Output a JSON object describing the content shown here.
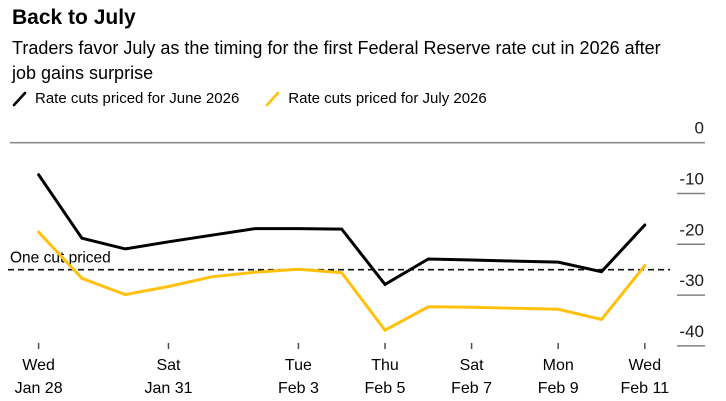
{
  "header": {
    "title": "Back to July",
    "subtitle": "Traders favor July as the timing for the first Federal Reserve rate cut in 2026 after job gains surprise"
  },
  "legend": {
    "items": [
      {
        "label": "Rate cuts priced for June 2026",
        "color": "#000000"
      },
      {
        "label": "Rate cuts priced for July 2026",
        "color": "#ffc10e"
      }
    ]
  },
  "colors": {
    "june_line": "#000000",
    "july_line": "#ffc10e",
    "zero_axis": "#8c8c8c",
    "tick_line": "#808080",
    "x_tick_line": "#4d4d4d",
    "label_text": "#1a1a1a",
    "dashed_line": "#111111"
  },
  "chart_data": {
    "type": "line",
    "title": "Back to July",
    "subtitle": "Traders favor July as the timing for the first Federal Reserve rate cut in 2026 after job gains surprise",
    "xlabel": "",
    "ylabel": "",
    "grid": false,
    "legend_position": "top",
    "ylim": [
      -42,
      0
    ],
    "yticks": [
      0,
      -10,
      -20,
      -30,
      -40
    ],
    "ytick_labels": [
      "0",
      "-10",
      "-20",
      "-30",
      "-40"
    ],
    "x": [
      "Jan 28",
      "Jan 29",
      "Jan 30",
      "Jan 31",
      "Feb 1",
      "Feb 2",
      "Feb 3",
      "Feb 4",
      "Feb 5",
      "Feb 6",
      "Feb 7",
      "Feb 8",
      "Feb 9",
      "Feb 10",
      "Feb 11"
    ],
    "xticks": [
      {
        "day": "Wed",
        "date": "Jan 28",
        "index": 0
      },
      {
        "day": "Sat",
        "date": "Jan 31",
        "index": 3
      },
      {
        "day": "Tue",
        "date": "Feb 3",
        "index": 6
      },
      {
        "day": "Thu",
        "date": "Feb 5",
        "index": 8
      },
      {
        "day": "Sat",
        "date": "Feb 7",
        "index": 10
      },
      {
        "day": "Mon",
        "date": "Feb 9",
        "index": 12
      },
      {
        "day": "Wed",
        "date": "Feb 11",
        "index": 14
      }
    ],
    "series": [
      {
        "name": "Rate cuts priced for June 2026",
        "color": "#000000",
        "values": [
          -6.3,
          -18.8,
          -20.9,
          -19.5,
          -18.2,
          -16.9,
          -16.9,
          -17.0,
          -27.9,
          -22.9,
          -23.1,
          -23.3,
          -23.5,
          -25.4,
          -16.2
        ]
      },
      {
        "name": "Rate cuts priced for July 2026",
        "color": "#ffc10e",
        "values": [
          -17.6,
          -26.7,
          -29.9,
          -28.3,
          -26.4,
          -25.5,
          -24.9,
          -25.6,
          -36.9,
          -32.3,
          -32.4,
          -32.6,
          -32.8,
          -34.8,
          -24.2
        ]
      }
    ],
    "annotation": {
      "label": "One cut priced",
      "value": -25,
      "style": "dashed"
    }
  }
}
